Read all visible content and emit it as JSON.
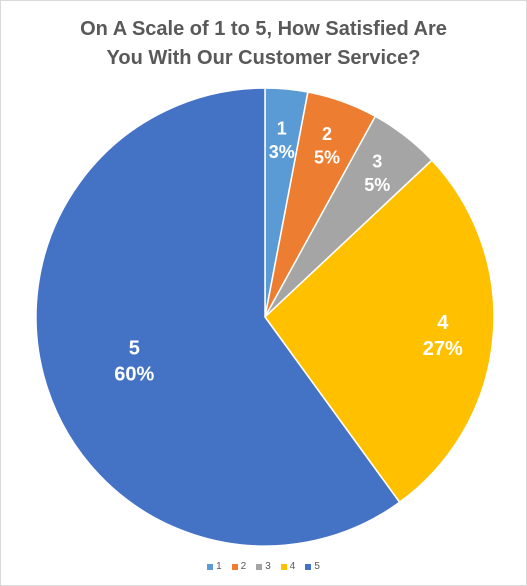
{
  "chart_data": {
    "type": "pie",
    "title_lines": [
      "On A Scale of 1 to 5, How Satisfied Are",
      "You With Our Customer Service?"
    ],
    "categories": [
      "1",
      "2",
      "3",
      "4",
      "5"
    ],
    "values": [
      3,
      5,
      5,
      27,
      60
    ],
    "labels": [
      "3%",
      "5%",
      "5%",
      "27%",
      "60%"
    ],
    "colors": [
      "#5b9bd5",
      "#ed7d31",
      "#a5a5a5",
      "#ffc000",
      "#4472c4"
    ],
    "legend_position": "bottom"
  }
}
